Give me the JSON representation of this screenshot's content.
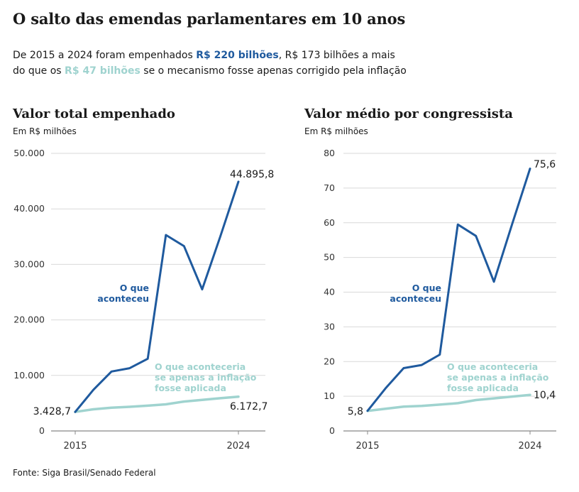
{
  "header": {
    "title": "O salto das emendas parlamentares em 10 anos",
    "sub_1": "De 2015 a 2024 foram empenhados ",
    "sub_hl1": "R$ 220 bilhões",
    "sub_2": ", R$ 173 bilhões a mais",
    "sub_3": "do que os ",
    "sub_hl2": "R$ 47 bilhões",
    "sub_4": " se o mecanismo fosse apenas corrigido pela inflação"
  },
  "colors": {
    "dark": "#1f5a9e",
    "light": "#9fd3cf",
    "grid": "#d9d9d9"
  },
  "source": "Fonte: Siga Brasil/Senado Federal",
  "chart_data": [
    {
      "type": "line",
      "title": "Valor total empenhado",
      "ylabel": "Em R$ milhões",
      "x": [
        2015,
        2016,
        2017,
        2018,
        2019,
        2020,
        2021,
        2022,
        2023,
        2024
      ],
      "xticks": [
        "2015",
        "2024"
      ],
      "ylim": [
        0,
        50000
      ],
      "yticks": [
        0,
        10000,
        20000,
        30000,
        40000,
        50000
      ],
      "ytick_labels": [
        "0",
        "10.000",
        "20.000",
        "30.000",
        "40.000",
        "50.000"
      ],
      "grid": true,
      "series": [
        {
          "name": "O que aconteceu",
          "color": "#1f5a9e",
          "values": [
            3428.7,
            7400,
            10700,
            11300,
            13000,
            35300,
            33300,
            25500,
            35000,
            44895.8
          ]
        },
        {
          "name": "O que aconteceria se apenas a inflação fosse aplicada",
          "color": "#9fd3cf",
          "values": [
            3428.7,
            3900,
            4200,
            4350,
            4550,
            4800,
            5300,
            5600,
            5900,
            6172.7
          ]
        }
      ],
      "labels": {
        "start": "3.428,7",
        "end_dark": "44.895,8",
        "end_light": "6.172,7"
      },
      "annotations": {
        "dark": [
          "O que",
          "aconteceu"
        ],
        "light": [
          "O que aconteceria",
          "se apenas a inflação",
          "fosse aplicada"
        ]
      }
    },
    {
      "type": "line",
      "title": "Valor médio por congressista",
      "ylabel": "Em R$ milhões",
      "x": [
        2015,
        2016,
        2017,
        2018,
        2019,
        2020,
        2021,
        2022,
        2023,
        2024
      ],
      "xticks": [
        "2015",
        "2024"
      ],
      "ylim": [
        0,
        80
      ],
      "yticks": [
        0,
        10,
        20,
        30,
        40,
        50,
        60,
        70,
        80
      ],
      "ytick_labels": [
        "0",
        "10",
        "20",
        "30",
        "40",
        "50",
        "60",
        "70",
        "80"
      ],
      "grid": true,
      "series": [
        {
          "name": "O que aconteceu",
          "color": "#1f5a9e",
          "values": [
            5.8,
            12.3,
            18.1,
            19.0,
            22.0,
            59.5,
            56.2,
            43.0,
            59.5,
            75.6
          ]
        },
        {
          "name": "O que aconteceria se apenas a inflação fosse aplicada",
          "color": "#9fd3cf",
          "values": [
            5.8,
            6.4,
            7.0,
            7.2,
            7.6,
            8.0,
            8.9,
            9.4,
            9.9,
            10.4
          ]
        }
      ],
      "labels": {
        "start": "5,8",
        "end_dark": "75,6",
        "end_light": "10,4"
      },
      "annotations": {
        "dark": [
          "O que",
          "aconteceu"
        ],
        "light": [
          "O que aconteceria",
          "se apenas a inflação",
          "fosse aplicada"
        ]
      }
    }
  ]
}
